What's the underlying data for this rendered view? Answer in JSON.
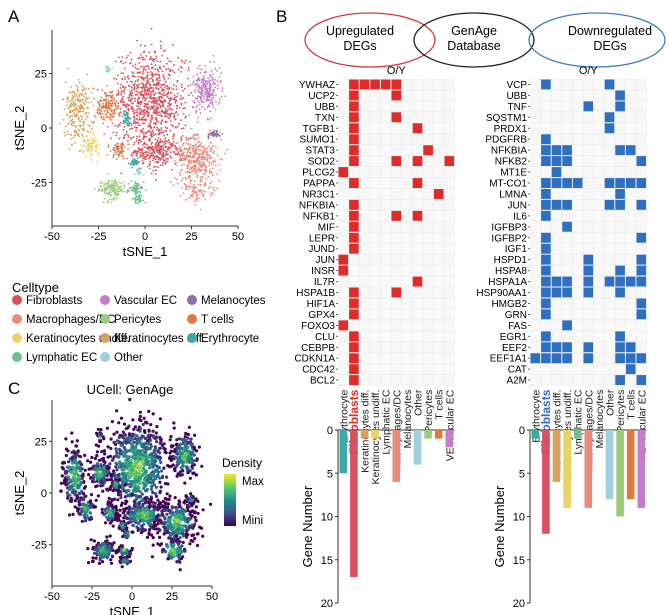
{
  "panel_labels": {
    "a": "A",
    "b": "B",
    "c": "C"
  },
  "colors": {
    "up": "#e02b2b",
    "down": "#2e6fc0",
    "grid_empty": "#f0f0f0",
    "highlight_fibro_up": "#e02b2b",
    "highlight_fibro_down": "#2e6fc0",
    "venn_up": "#d23b3b",
    "venn_mid": "#222222",
    "venn_down": "#3a7fc4"
  },
  "celltypes": [
    {
      "name": "Fibroblasts",
      "color": "#d8515f"
    },
    {
      "name": "Vascular EC",
      "color": "#c77cc9"
    },
    {
      "name": "Melanocytes",
      "color": "#8a6fb0"
    },
    {
      "name": "Macrophages/DC",
      "color": "#ec8a7e"
    },
    {
      "name": "Pericytes",
      "color": "#9ccc7a"
    },
    {
      "name": "T cells",
      "color": "#e07a42"
    },
    {
      "name": "Keratinocytes undiff.",
      "color": "#e9d466"
    },
    {
      "name": "Keratinocytes diff.",
      "color": "#d9a25a"
    },
    {
      "name": "Erythrocyte",
      "color": "#3eaaa5"
    },
    {
      "name": "Lymphatic EC",
      "color": "#6fbf8e"
    },
    {
      "name": "Other",
      "color": "#9fd0dc"
    }
  ],
  "chart_data": [
    {
      "type": "scatter",
      "panel": "A",
      "xlabel": "tSNE_1",
      "ylabel": "tSNE_2",
      "xlim": [
        -50,
        50
      ],
      "ylim": [
        -45,
        45
      ],
      "xticks": [
        -50,
        -25,
        0,
        25,
        50
      ],
      "yticks": [
        -25,
        0,
        25
      ],
      "legend_title": "Celltype",
      "legend_placement": "bottom",
      "clusters": [
        {
          "type": "Fibroblasts",
          "cx": 3,
          "cy": 12,
          "rx": 20,
          "ry": 22,
          "n": 900
        },
        {
          "type": "Fibroblasts",
          "cx": 7,
          "cy": -11,
          "rx": 14,
          "ry": 8,
          "n": 280
        },
        {
          "type": "Macrophages/DC",
          "cx": 28,
          "cy": -14,
          "rx": 12,
          "ry": 10,
          "n": 320
        },
        {
          "type": "Macrophages/DC",
          "cx": 26,
          "cy": -28,
          "rx": 9,
          "ry": 6,
          "n": 90
        },
        {
          "type": "Vascular EC",
          "cx": 33,
          "cy": 18,
          "rx": 8,
          "ry": 10,
          "n": 220
        },
        {
          "type": "Keratinocytes diff.",
          "cx": -36,
          "cy": 8,
          "rx": 7,
          "ry": 14,
          "n": 230
        },
        {
          "type": "Keratinocytes undiff.",
          "cx": -29,
          "cy": -8,
          "rx": 5,
          "ry": 6,
          "n": 80
        },
        {
          "type": "Pericytes",
          "cx": -18,
          "cy": -28,
          "rx": 7,
          "ry": 5,
          "n": 150
        },
        {
          "type": "T cells",
          "cx": -20,
          "cy": 10,
          "rx": 6,
          "ry": 7,
          "n": 140
        },
        {
          "type": "T cells",
          "cx": -14,
          "cy": -10,
          "rx": 5,
          "ry": 4,
          "n": 60
        },
        {
          "type": "Erythrocyte",
          "cx": -10,
          "cy": 4,
          "rx": 2,
          "ry": 3,
          "n": 40
        },
        {
          "type": "Erythrocyte",
          "cx": -6,
          "cy": -16,
          "rx": 3,
          "ry": 2,
          "n": 40
        },
        {
          "type": "Lymphatic EC",
          "cx": -5,
          "cy": -28,
          "rx": 4,
          "ry": 3,
          "n": 60
        },
        {
          "type": "Lymphatic EC",
          "cx": -4,
          "cy": -33,
          "rx": 3,
          "ry": 2,
          "n": 30
        },
        {
          "type": "Melanocytes",
          "cx": 37,
          "cy": -3,
          "rx": 4,
          "ry": 1.5,
          "n": 40
        },
        {
          "type": "Other",
          "cx": -20,
          "cy": 27,
          "rx": 2,
          "ry": 2,
          "n": 25
        },
        {
          "type": "Other",
          "cx": -3,
          "cy": -20,
          "rx": 2,
          "ry": 2,
          "n": 20
        }
      ]
    },
    {
      "type": "heatmap",
      "panel": "B-up",
      "venn": [
        "Upregulated\nDEGs",
        "GenAge\nDatabase",
        "Downregulated\nDEGs"
      ],
      "title": "O/Y",
      "highlight_column": "Fibroblasts",
      "columns": [
        "Erythrocyte",
        "Fibroblasts",
        "Keratinocytes diff.",
        "Keratinocytes undiff.",
        "Lymphatic EC",
        "Macrophages/DC",
        "Melanocytes",
        "Other",
        "Pericytes",
        "T cells",
        "VEVascular EC"
      ],
      "rows": [
        "YWHAZ",
        "UCP2",
        "UBB",
        "TXN",
        "TGFB1",
        "SUMO1",
        "STAT3",
        "SOD2",
        "PLCG2",
        "PAPPA",
        "NR3C1",
        "NFKBIA",
        "NFKB1",
        "MIF",
        "LEPR",
        "JUND",
        "JUN",
        "INSR",
        "IL7R",
        "HSPA1B",
        "HIF1A",
        "GPX4",
        "FOXO3",
        "CLU",
        "CEBPB",
        "CDKN1A",
        "CDC42",
        "BCL2"
      ],
      "cells": [
        [
          1,
          2,
          3,
          4,
          5
        ],
        [
          1,
          5
        ],
        [
          1
        ],
        [
          1,
          5
        ],
        [
          1,
          7
        ],
        [
          1
        ],
        [
          1,
          8
        ],
        [
          1,
          5,
          7,
          10
        ],
        [
          0
        ],
        [
          1,
          7
        ],
        [
          9
        ],
        [
          1
        ],
        [
          1,
          5,
          7
        ],
        [
          1
        ],
        [
          1
        ],
        [
          1
        ],
        [
          0
        ],
        [
          0
        ],
        [
          7
        ],
        [
          1,
          5
        ],
        [
          1
        ],
        [
          1
        ],
        [
          0
        ],
        [
          1
        ],
        [
          1
        ],
        [
          1
        ],
        [
          1
        ],
        [
          1
        ]
      ]
    },
    {
      "type": "heatmap",
      "panel": "B-down",
      "title": "O/Y",
      "highlight_column": "Fibroblasts",
      "columns": [
        "Erythrocyte",
        "Fibroblasts",
        "Keratinocytes diff.",
        "Keratinocytes undiff.",
        "Lymphatic EC",
        "Macrophages/DC",
        "Melanocytes",
        "Other",
        "Pericytes",
        "T cells",
        "VEVascular EC"
      ],
      "rows": [
        "VCP",
        "UBB",
        "TNF",
        "SQSTM1",
        "PRDX1",
        "PDGFRB",
        "NFKBIA",
        "NFKB2",
        "MT1E",
        "MT-CO1",
        "LMNA",
        "JUN",
        "IL6",
        "IGFBP3",
        "IGFBP2",
        "IGF1",
        "HSPD1",
        "HSPA8",
        "HSPA1A",
        "HSP90AA1",
        "HMGB2",
        "GRN",
        "FAS",
        "EGR1",
        "EEF2",
        "EEF1A1",
        "CAT",
        "A2M"
      ],
      "cells": [
        [
          1,
          7
        ],
        [
          8
        ],
        [
          5,
          8
        ],
        [
          7
        ],
        [
          7
        ],
        [
          1
        ],
        [
          1,
          2,
          3,
          8,
          9
        ],
        [
          1,
          2,
          3,
          10
        ],
        [
          2
        ],
        [
          1,
          2,
          3,
          4,
          7,
          8,
          9,
          10
        ],
        [
          1,
          8
        ],
        [
          1,
          2,
          3,
          7,
          8,
          10
        ],
        [
          1
        ],
        [
          3
        ],
        [
          1,
          10
        ],
        [
          1
        ],
        [
          1,
          5,
          10
        ],
        [
          1,
          5,
          8,
          10
        ],
        [
          1,
          2,
          3,
          5,
          7,
          8,
          9,
          10
        ],
        [
          1,
          2,
          3,
          5,
          8
        ],
        [
          1,
          10
        ],
        [
          1,
          10
        ],
        [
          3
        ],
        [
          1,
          8
        ],
        [
          1,
          2,
          3,
          5,
          8,
          9
        ],
        [
          0,
          1,
          2,
          3,
          5,
          8,
          9,
          10
        ],
        [
          9
        ],
        [
          8,
          10
        ]
      ]
    },
    {
      "type": "bar",
      "panel": "B-up-count",
      "ylabel": "Gene Number",
      "ylim": [
        0,
        20
      ],
      "yticks": [
        0,
        5,
        10,
        15,
        20
      ],
      "categories": [
        "Erythrocyte",
        "Fibroblasts",
        "Keratinocytes diff.",
        "Keratinocytes undiff.",
        "Lymphatic EC",
        "Macrophages/DC",
        "Melanocytes",
        "Other",
        "Pericytes",
        "T cells",
        "VEVascular EC"
      ],
      "values": [
        5,
        17,
        1,
        1,
        0,
        6,
        0,
        4,
        1,
        1,
        2
      ]
    },
    {
      "type": "bar",
      "panel": "B-down-count",
      "ylabel": "Gene Number",
      "ylim": [
        0,
        20
      ],
      "yticks": [
        0,
        5,
        10,
        15,
        20
      ],
      "categories": [
        "Erythrocyte",
        "Fibroblasts",
        "Keratinocytes diff.",
        "Keratinocytes undiff.",
        "Lymphatic EC",
        "Macrophages/DC",
        "Melanocytes",
        "Other",
        "Pericytes",
        "T cells",
        "VEVascular EC"
      ],
      "values": [
        1,
        12,
        6,
        9,
        1,
        9,
        0,
        8,
        10,
        8,
        9
      ]
    },
    {
      "type": "scatter",
      "panel": "C",
      "title": "UCell: GenAge",
      "xlabel": "tSNE_1",
      "ylabel": "tSNE_2",
      "xlim": [
        -50,
        50
      ],
      "ylim": [
        -45,
        45
      ],
      "xticks": [
        -50,
        -25,
        0,
        25,
        50
      ],
      "yticks": [
        -25,
        0,
        25
      ],
      "colorbar_title": "Density",
      "colorbar_max": "Max",
      "colorbar_min": "Mini",
      "colormap": [
        "#440154",
        "#3b528b",
        "#21918c",
        "#5ec962",
        "#fde725"
      ]
    }
  ]
}
